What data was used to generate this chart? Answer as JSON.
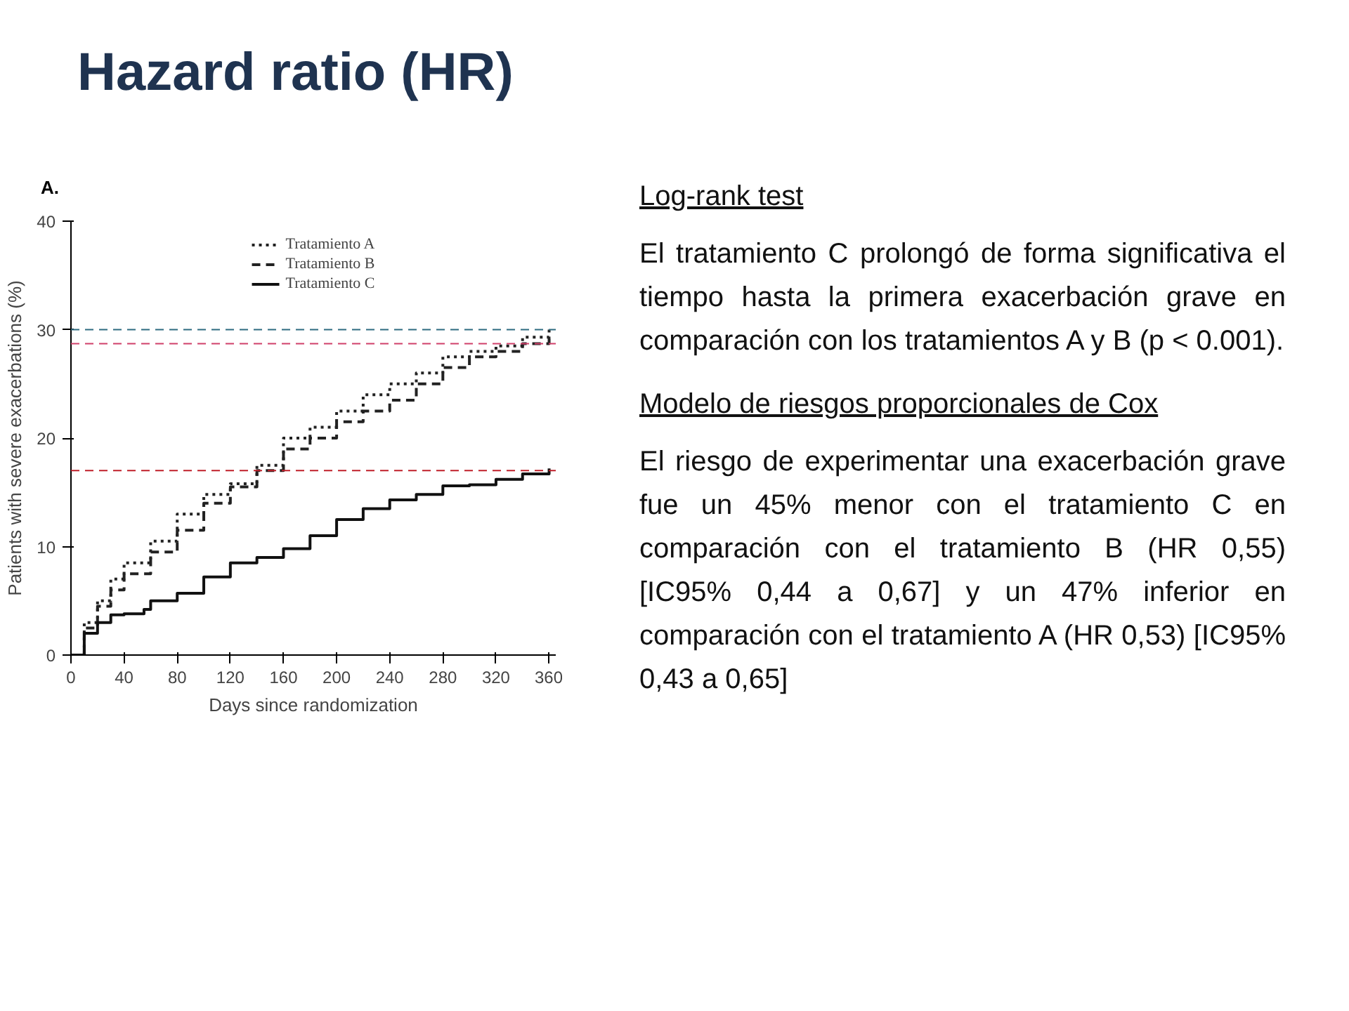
{
  "chart_data": {
    "type": "step",
    "title": "Hazard ratio (HR)",
    "xlabel": "Days since randomization",
    "ylabel": "Patients with severe exacerbations (%)",
    "xlim": [
      0,
      365
    ],
    "xticks": [
      0,
      40,
      80,
      120,
      160,
      200,
      240,
      280,
      320,
      360
    ],
    "ylim": [
      0,
      40
    ],
    "yticks": [
      0,
      10,
      20,
      30,
      40
    ],
    "grid": false,
    "legend": "top",
    "series": [
      {
        "name": "Tratamiento A",
        "color": "#222222",
        "line_style": "dotted",
        "x": [
          0,
          10,
          20,
          30,
          40,
          60,
          80,
          100,
          120,
          140,
          160,
          180,
          200,
          220,
          240,
          260,
          280,
          300,
          320,
          340,
          360
        ],
        "values": [
          0,
          3,
          5,
          7,
          8.5,
          10.5,
          13,
          14.8,
          15.8,
          17.5,
          20,
          21,
          22.5,
          24,
          25,
          26,
          27.5,
          28,
          28.5,
          29.3,
          30
        ]
      },
      {
        "name": "Tratamiento B",
        "color": "#222222",
        "line_style": "dashed",
        "x": [
          0,
          10,
          20,
          30,
          40,
          60,
          80,
          100,
          120,
          140,
          160,
          180,
          200,
          220,
          240,
          260,
          280,
          300,
          320,
          340,
          360
        ],
        "values": [
          0,
          2.5,
          4.5,
          6,
          7.5,
          9.5,
          11.5,
          14,
          15.5,
          17,
          19,
          20,
          21.5,
          22.5,
          23.5,
          25,
          26.5,
          27.5,
          28,
          28.7,
          29.3
        ]
      },
      {
        "name": "Tratamiento C",
        "color": "#111111",
        "line_style": "solid",
        "x": [
          0,
          10,
          20,
          30,
          40,
          55,
          60,
          80,
          100,
          120,
          140,
          160,
          180,
          200,
          220,
          240,
          260,
          280,
          300,
          320,
          340,
          360
        ],
        "values": [
          0,
          2,
          3,
          3.7,
          3.8,
          4.2,
          5,
          5.7,
          7.2,
          8.5,
          9,
          9.8,
          11,
          12.5,
          13.5,
          14.3,
          14.8,
          15.6,
          15.7,
          16.2,
          16.7,
          17.2
        ]
      }
    ],
    "ref_lines": [
      {
        "axis": "y",
        "value": 30,
        "color": "#2e6b80",
        "line_style": "dashed"
      },
      {
        "axis": "y",
        "value": 28.7,
        "color": "#d0406a",
        "line_style": "dashed"
      },
      {
        "axis": "y",
        "value": 17,
        "color": "#c0202a",
        "line_style": "dashed"
      }
    ],
    "annotations": [
      "A.",
      "Log-rank test",
      "El tratamiento C prolongó de forma significativa el tiempo hasta la primera exacerbación grave en comparación con los tratamientos A y B (p < 0.001).",
      "Modelo de riesgos proporcionales de Cox",
      "El riesgo de experimentar una exacerbación grave fue un 45% menor con el tratamiento C en comparación con el tratamiento B (HR 0,55) [IC95% 0,44 a 0,67] y un 47% inferior en comparación con el tratamiento A (HR 0,53) [IC95% 0,43 a 0,65]"
    ]
  }
}
